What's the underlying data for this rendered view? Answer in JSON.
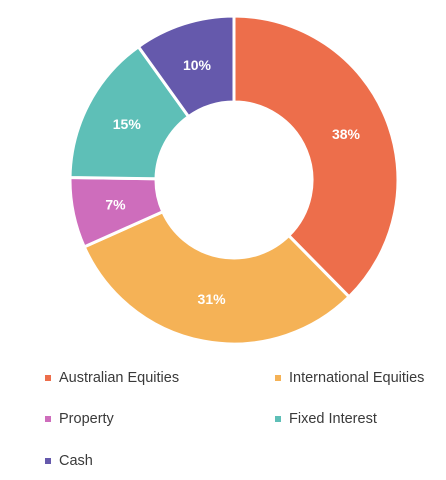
{
  "chart_data": {
    "type": "pie",
    "style": "donut",
    "title": "",
    "legend_position": "bottom",
    "slices": [
      {
        "label": "Australian Equities",
        "value": 38,
        "value_label": "38%",
        "color": "#ED6E4B"
      },
      {
        "label": "International Equities",
        "value": 31,
        "value_label": "31%",
        "color": "#F5B256"
      },
      {
        "label": "Property",
        "value": 7,
        "value_label": "7%",
        "color": "#CE6DBC"
      },
      {
        "label": "Fixed Interest",
        "value": 15,
        "value_label": "15%",
        "color": "#5EBFB7"
      },
      {
        "label": "Cash",
        "value": 10,
        "value_label": "10%",
        "color": "#6559AC"
      }
    ]
  }
}
